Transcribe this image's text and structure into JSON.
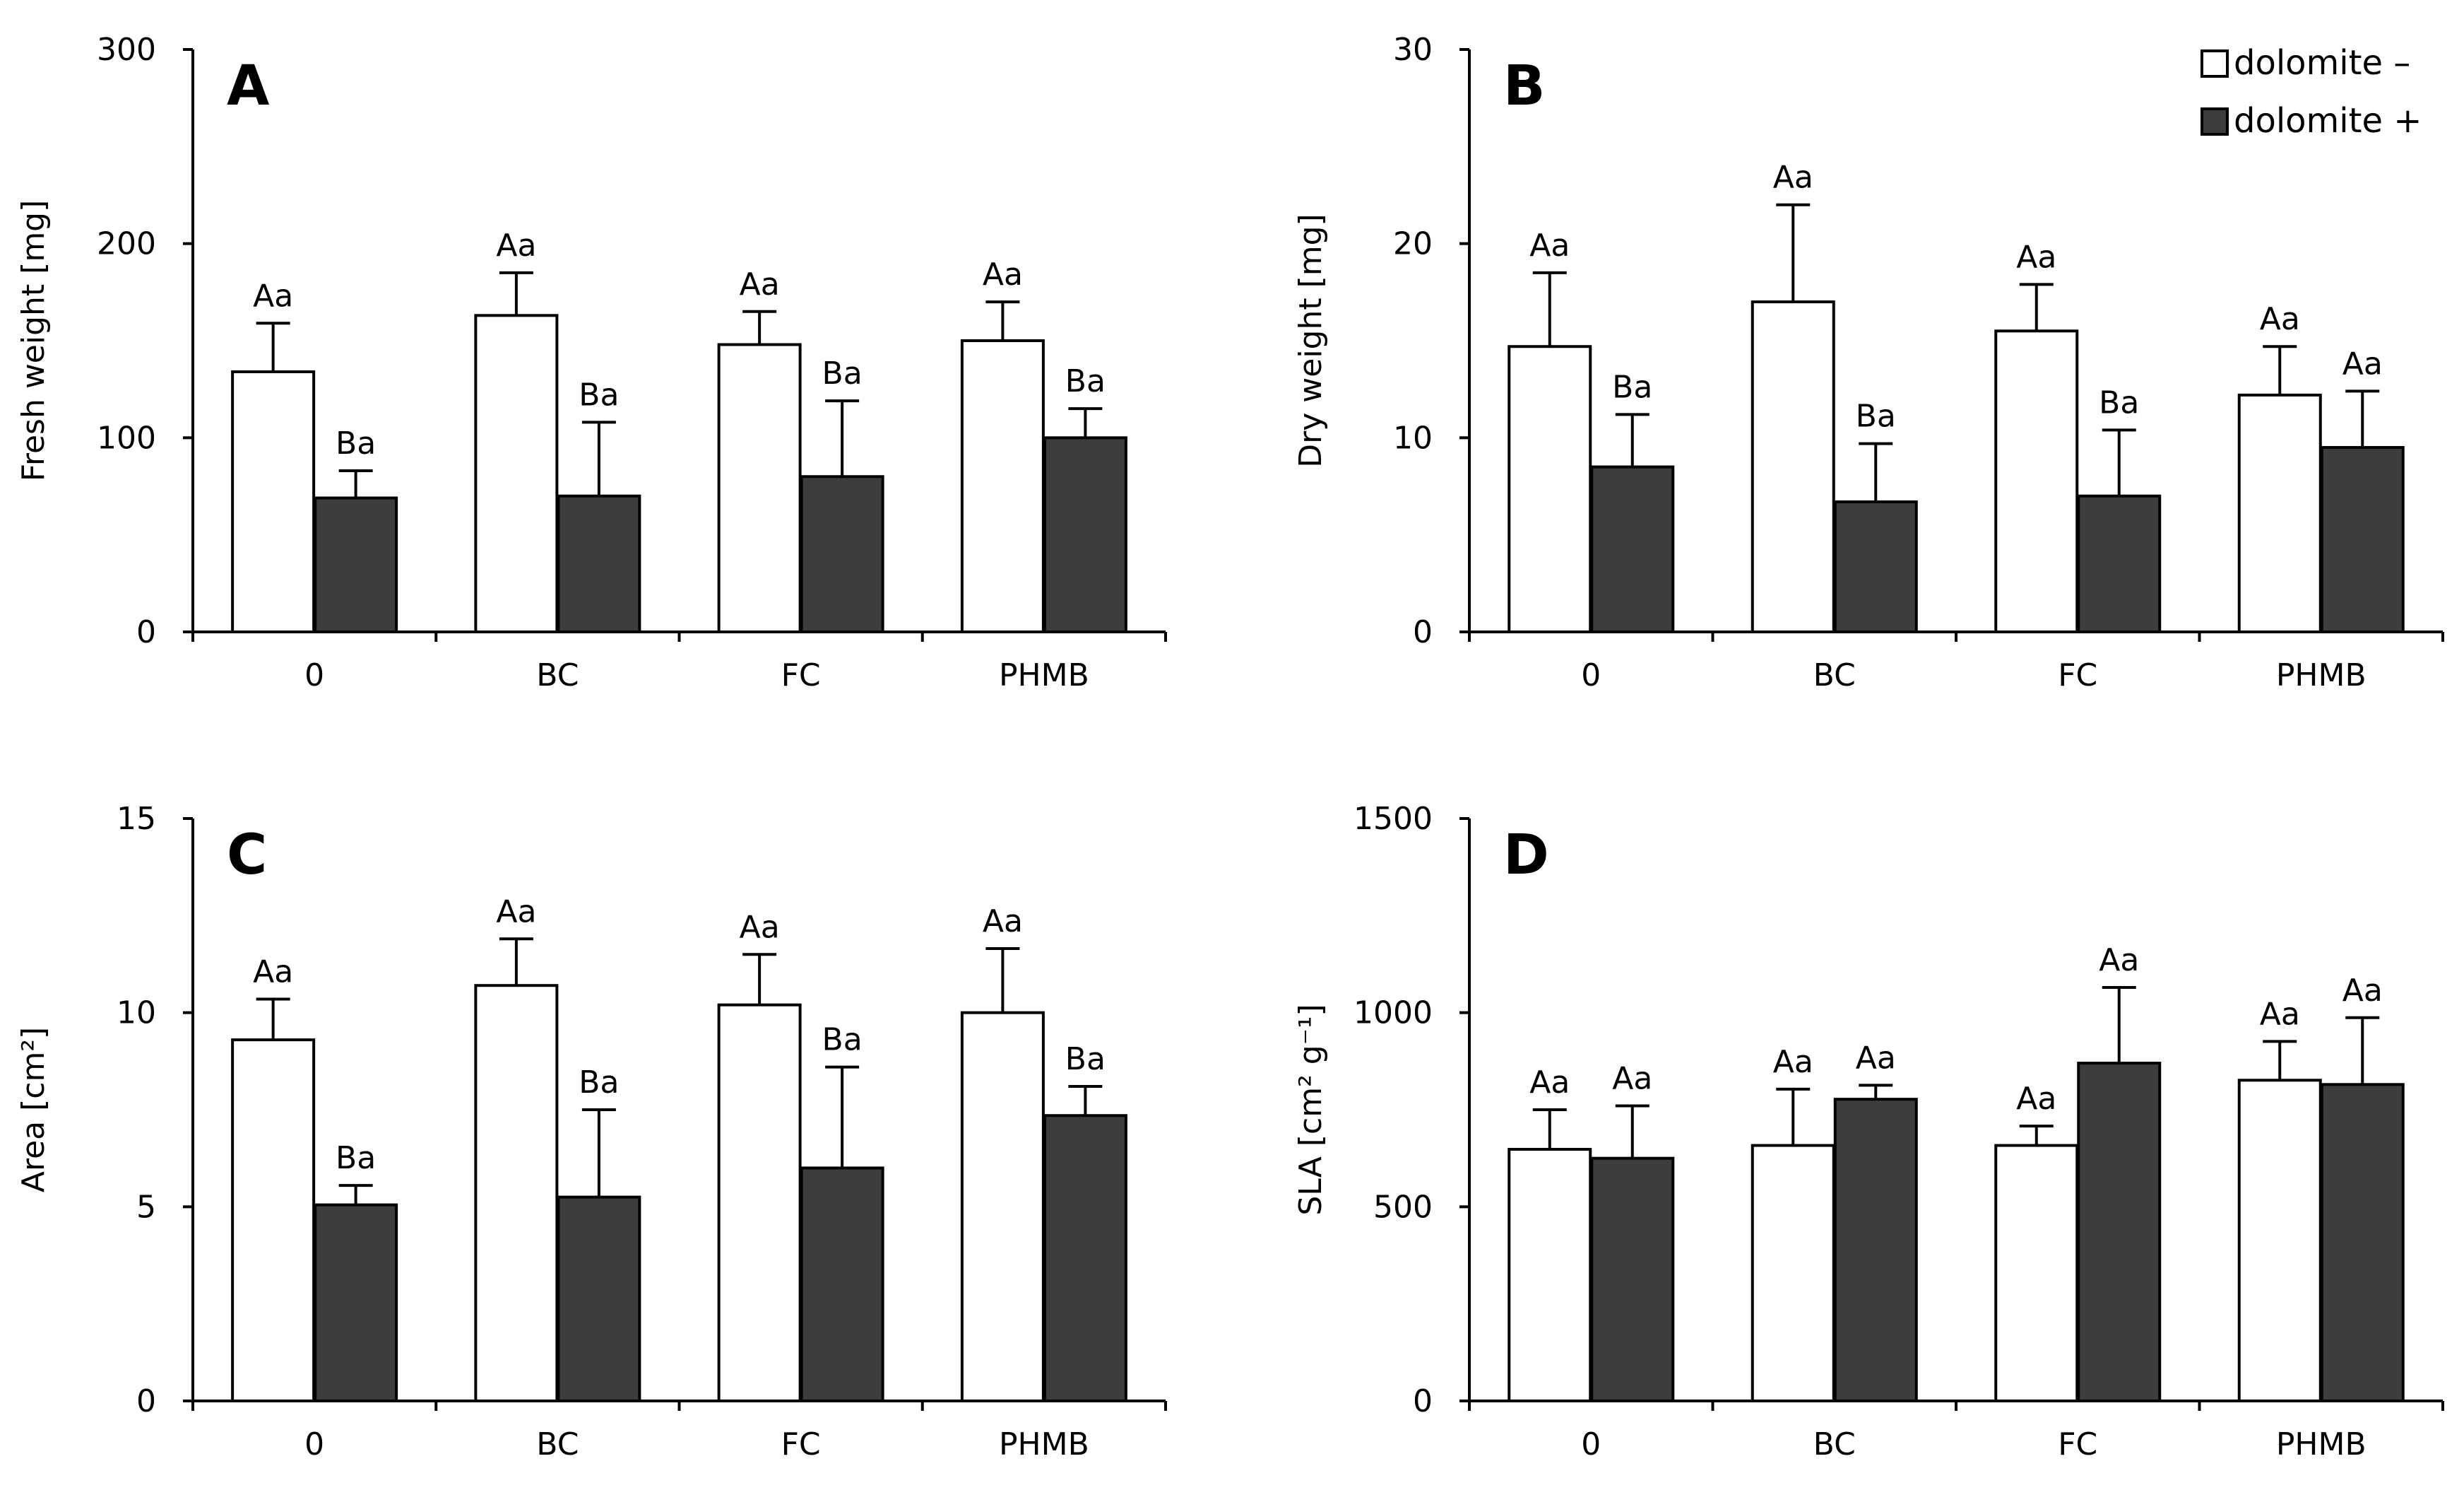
{
  "legend": {
    "items": [
      {
        "label": "dolomite –",
        "color": "#ffffff"
      },
      {
        "label": "dolomite +",
        "color": "#3d3d3d"
      }
    ]
  },
  "chart_data": [
    {
      "type": "bar",
      "panel": "A",
      "ylabel": "Fresh weight [mg]",
      "ylim": [
        0,
        300
      ],
      "yticks": [
        "0",
        "100",
        "200",
        "300"
      ],
      "categories": [
        "0",
        "BC",
        "FC",
        "PHMB"
      ],
      "series": [
        {
          "name": "dolomite –",
          "color": "#ffffff",
          "values": [
            134,
            163,
            148,
            150
          ],
          "errors": [
            25,
            22,
            17,
            20
          ],
          "labels": [
            "Aa",
            "Aa",
            "Aa",
            "Aa"
          ]
        },
        {
          "name": "dolomite +",
          "color": "#3d3d3d",
          "values": [
            69,
            70,
            80,
            100
          ],
          "errors": [
            14,
            38,
            39,
            15
          ],
          "labels": [
            "Ba",
            "Ba",
            "Ba",
            "Ba"
          ]
        }
      ]
    },
    {
      "type": "bar",
      "panel": "B",
      "ylabel": "Dry weight [mg]",
      "ylim": [
        0,
        30
      ],
      "yticks": [
        "0",
        "10",
        "20",
        "30"
      ],
      "categories": [
        "0",
        "BC",
        "FC",
        "PHMB"
      ],
      "series": [
        {
          "name": "dolomite –",
          "color": "#ffffff",
          "values": [
            14.7,
            17,
            15.5,
            12.2
          ],
          "errors": [
            3.8,
            5,
            2.4,
            2.5
          ],
          "labels": [
            "Aa",
            "Aa",
            "Aa",
            "Aa"
          ]
        },
        {
          "name": "dolomite +",
          "color": "#3d3d3d",
          "values": [
            8.5,
            6.7,
            7,
            9.5
          ],
          "errors": [
            2.7,
            3,
            3.4,
            2.9
          ],
          "labels": [
            "Ba",
            "Ba",
            "Ba",
            "Aa"
          ]
        }
      ]
    },
    {
      "type": "bar",
      "panel": "C",
      "ylabel": "Area [cm²]",
      "ylim": [
        0,
        15
      ],
      "yticks": [
        "0",
        "5",
        "10",
        "15"
      ],
      "categories": [
        "0",
        "BC",
        "FC",
        "PHMB"
      ],
      "series": [
        {
          "name": "dolomite –",
          "color": "#ffffff",
          "values": [
            9.3,
            10.7,
            10.2,
            10
          ],
          "errors": [
            1.05,
            1.2,
            1.3,
            1.65
          ],
          "labels": [
            "Aa",
            "Aa",
            "Aa",
            "Aa"
          ]
        },
        {
          "name": "dolomite +",
          "color": "#3d3d3d",
          "values": [
            5.05,
            5.25,
            6,
            7.35
          ],
          "errors": [
            0.5,
            2.25,
            2.6,
            0.75
          ],
          "labels": [
            "Ba",
            "Ba",
            "Ba",
            "Ba"
          ]
        }
      ]
    },
    {
      "type": "bar",
      "panel": "D",
      "ylabel": "SLA [cm² g⁻¹]",
      "ylim": [
        0,
        1500
      ],
      "yticks": [
        "0",
        "500",
        "1000",
        "1500"
      ],
      "categories": [
        "0",
        "BC",
        "FC",
        "PHMB"
      ],
      "series": [
        {
          "name": "dolomite –",
          "color": "#ffffff",
          "values": [
            648,
            658,
            658,
            826
          ],
          "errors": [
            102,
            145,
            50,
            100
          ],
          "labels": [
            "Aa",
            "Aa",
            "Aa",
            "Aa"
          ]
        },
        {
          "name": "dolomite +",
          "color": "#3d3d3d",
          "values": [
            625,
            777,
            870,
            815
          ],
          "errors": [
            135,
            36,
            195,
            172
          ],
          "labels": [
            "Aa",
            "Aa",
            "Aa",
            "Aa"
          ]
        }
      ]
    }
  ]
}
